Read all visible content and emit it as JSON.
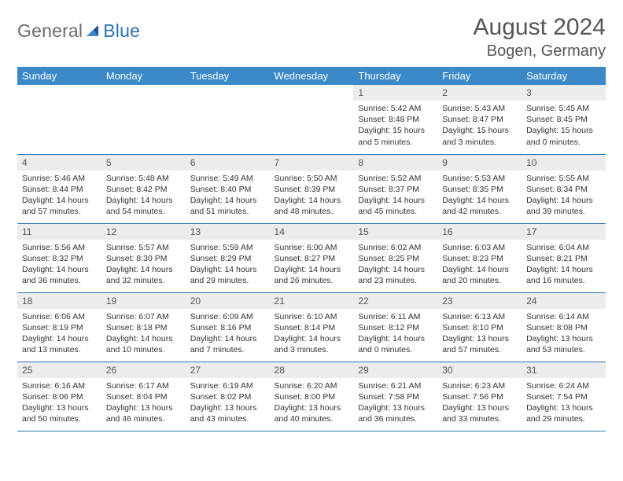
{
  "brand": {
    "left": "General",
    "right": "Blue"
  },
  "title": "August 2024",
  "location": "Bogen, Germany",
  "colors": {
    "header_bg": "#3b89c9",
    "header_text": "#ffffff",
    "rule": "#2a72b5",
    "daynum_bg": "#ececec",
    "body_text": "#333333",
    "title_text": "#555555",
    "logo_gray": "#6b6b6b",
    "logo_blue": "#2a72b5"
  },
  "weekdays": [
    "Sunday",
    "Monday",
    "Tuesday",
    "Wednesday",
    "Thursday",
    "Friday",
    "Saturday"
  ],
  "weeks": [
    [
      {
        "n": "",
        "sr": "",
        "ss": "",
        "dl": ""
      },
      {
        "n": "",
        "sr": "",
        "ss": "",
        "dl": ""
      },
      {
        "n": "",
        "sr": "",
        "ss": "",
        "dl": ""
      },
      {
        "n": "",
        "sr": "",
        "ss": "",
        "dl": ""
      },
      {
        "n": "1",
        "sr": "Sunrise: 5:42 AM",
        "ss": "Sunset: 8:48 PM",
        "dl": "Daylight: 15 hours and 5 minutes."
      },
      {
        "n": "2",
        "sr": "Sunrise: 5:43 AM",
        "ss": "Sunset: 8:47 PM",
        "dl": "Daylight: 15 hours and 3 minutes."
      },
      {
        "n": "3",
        "sr": "Sunrise: 5:45 AM",
        "ss": "Sunset: 8:45 PM",
        "dl": "Daylight: 15 hours and 0 minutes."
      }
    ],
    [
      {
        "n": "4",
        "sr": "Sunrise: 5:46 AM",
        "ss": "Sunset: 8:44 PM",
        "dl": "Daylight: 14 hours and 57 minutes."
      },
      {
        "n": "5",
        "sr": "Sunrise: 5:48 AM",
        "ss": "Sunset: 8:42 PM",
        "dl": "Daylight: 14 hours and 54 minutes."
      },
      {
        "n": "6",
        "sr": "Sunrise: 5:49 AM",
        "ss": "Sunset: 8:40 PM",
        "dl": "Daylight: 14 hours and 51 minutes."
      },
      {
        "n": "7",
        "sr": "Sunrise: 5:50 AM",
        "ss": "Sunset: 8:39 PM",
        "dl": "Daylight: 14 hours and 48 minutes."
      },
      {
        "n": "8",
        "sr": "Sunrise: 5:52 AM",
        "ss": "Sunset: 8:37 PM",
        "dl": "Daylight: 14 hours and 45 minutes."
      },
      {
        "n": "9",
        "sr": "Sunrise: 5:53 AM",
        "ss": "Sunset: 8:35 PM",
        "dl": "Daylight: 14 hours and 42 minutes."
      },
      {
        "n": "10",
        "sr": "Sunrise: 5:55 AM",
        "ss": "Sunset: 8:34 PM",
        "dl": "Daylight: 14 hours and 39 minutes."
      }
    ],
    [
      {
        "n": "11",
        "sr": "Sunrise: 5:56 AM",
        "ss": "Sunset: 8:32 PM",
        "dl": "Daylight: 14 hours and 36 minutes."
      },
      {
        "n": "12",
        "sr": "Sunrise: 5:57 AM",
        "ss": "Sunset: 8:30 PM",
        "dl": "Daylight: 14 hours and 32 minutes."
      },
      {
        "n": "13",
        "sr": "Sunrise: 5:59 AM",
        "ss": "Sunset: 8:29 PM",
        "dl": "Daylight: 14 hours and 29 minutes."
      },
      {
        "n": "14",
        "sr": "Sunrise: 6:00 AM",
        "ss": "Sunset: 8:27 PM",
        "dl": "Daylight: 14 hours and 26 minutes."
      },
      {
        "n": "15",
        "sr": "Sunrise: 6:02 AM",
        "ss": "Sunset: 8:25 PM",
        "dl": "Daylight: 14 hours and 23 minutes."
      },
      {
        "n": "16",
        "sr": "Sunrise: 6:03 AM",
        "ss": "Sunset: 8:23 PM",
        "dl": "Daylight: 14 hours and 20 minutes."
      },
      {
        "n": "17",
        "sr": "Sunrise: 6:04 AM",
        "ss": "Sunset: 8:21 PM",
        "dl": "Daylight: 14 hours and 16 minutes."
      }
    ],
    [
      {
        "n": "18",
        "sr": "Sunrise: 6:06 AM",
        "ss": "Sunset: 8:19 PM",
        "dl": "Daylight: 14 hours and 13 minutes."
      },
      {
        "n": "19",
        "sr": "Sunrise: 6:07 AM",
        "ss": "Sunset: 8:18 PM",
        "dl": "Daylight: 14 hours and 10 minutes."
      },
      {
        "n": "20",
        "sr": "Sunrise: 6:09 AM",
        "ss": "Sunset: 8:16 PM",
        "dl": "Daylight: 14 hours and 7 minutes."
      },
      {
        "n": "21",
        "sr": "Sunrise: 6:10 AM",
        "ss": "Sunset: 8:14 PM",
        "dl": "Daylight: 14 hours and 3 minutes."
      },
      {
        "n": "22",
        "sr": "Sunrise: 6:11 AM",
        "ss": "Sunset: 8:12 PM",
        "dl": "Daylight: 14 hours and 0 minutes."
      },
      {
        "n": "23",
        "sr": "Sunrise: 6:13 AM",
        "ss": "Sunset: 8:10 PM",
        "dl": "Daylight: 13 hours and 57 minutes."
      },
      {
        "n": "24",
        "sr": "Sunrise: 6:14 AM",
        "ss": "Sunset: 8:08 PM",
        "dl": "Daylight: 13 hours and 53 minutes."
      }
    ],
    [
      {
        "n": "25",
        "sr": "Sunrise: 6:16 AM",
        "ss": "Sunset: 8:06 PM",
        "dl": "Daylight: 13 hours and 50 minutes."
      },
      {
        "n": "26",
        "sr": "Sunrise: 6:17 AM",
        "ss": "Sunset: 8:04 PM",
        "dl": "Daylight: 13 hours and 46 minutes."
      },
      {
        "n": "27",
        "sr": "Sunrise: 6:19 AM",
        "ss": "Sunset: 8:02 PM",
        "dl": "Daylight: 13 hours and 43 minutes."
      },
      {
        "n": "28",
        "sr": "Sunrise: 6:20 AM",
        "ss": "Sunset: 8:00 PM",
        "dl": "Daylight: 13 hours and 40 minutes."
      },
      {
        "n": "29",
        "sr": "Sunrise: 6:21 AM",
        "ss": "Sunset: 7:58 PM",
        "dl": "Daylight: 13 hours and 36 minutes."
      },
      {
        "n": "30",
        "sr": "Sunrise: 6:23 AM",
        "ss": "Sunset: 7:56 PM",
        "dl": "Daylight: 13 hours and 33 minutes."
      },
      {
        "n": "31",
        "sr": "Sunrise: 6:24 AM",
        "ss": "Sunset: 7:54 PM",
        "dl": "Daylight: 13 hours and 29 minutes."
      }
    ]
  ]
}
